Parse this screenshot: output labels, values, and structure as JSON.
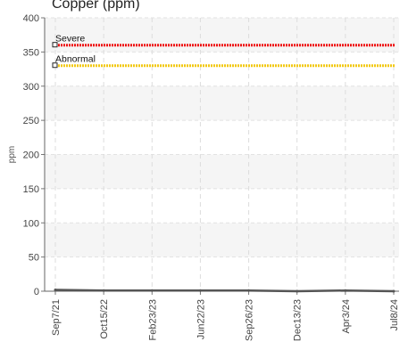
{
  "chart_data": {
    "type": "line",
    "title": "Copper (ppm)",
    "xlabel": "",
    "ylabel": "ppm",
    "ylim": [
      0,
      400
    ],
    "yticks": [
      0,
      50,
      100,
      150,
      200,
      250,
      300,
      350,
      400
    ],
    "x_tick_labels": [
      "Sep7/21",
      "Oct15/22",
      "Feb23/23",
      "Jun22/23",
      "Sep26/23",
      "Dec13/23",
      "Apr3/24",
      "Jul8/24"
    ],
    "grid": true,
    "reference_lines": [
      {
        "name": "Severe",
        "value": 360,
        "color": "#ee1111"
      },
      {
        "name": "Abnormal",
        "value": 330,
        "color": "#f2c811"
      }
    ],
    "series": [
      {
        "color": "#555555",
        "x": [
          "Sep7/21",
          "Oct15/22",
          "Feb23/23",
          "Jun22/23",
          "Sep26/23",
          "Dec13/23",
          "Apr3/24",
          "Jul8/24"
        ],
        "values": [
          2,
          1,
          1,
          1,
          1,
          0,
          1,
          0
        ]
      }
    ]
  }
}
